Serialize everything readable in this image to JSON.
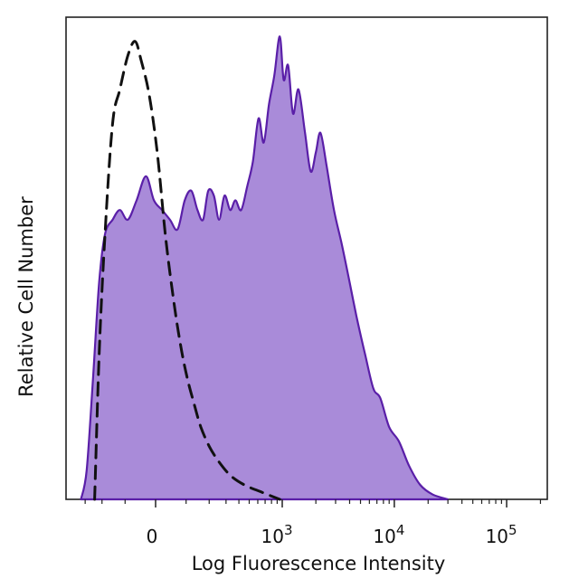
{
  "chart_data": {
    "type": "area",
    "title": "",
    "xlabel": "Log Fluorescence Intensity",
    "ylabel": "Relative Cell Number",
    "x_scale": "biexponential",
    "xlim": [
      -300,
      200000
    ],
    "ylim": [
      0,
      1.0
    ],
    "ticks": [
      {
        "value": 0,
        "base": "0",
        "exp": ""
      },
      {
        "value": 1000,
        "base": "10",
        "exp": "3"
      },
      {
        "value": 10000,
        "base": "10",
        "exp": "4"
      },
      {
        "value": 100000,
        "base": "10",
        "exp": "5"
      }
    ],
    "grid": false,
    "legend": "none",
    "series": [
      {
        "style": "filled",
        "fill": "#a98bd9",
        "stroke": "#5a1fa8",
        "points": [
          [
            -330,
            0.0
          ],
          [
            -290,
            0.06
          ],
          [
            -250,
            0.25
          ],
          [
            -215,
            0.45
          ],
          [
            -185,
            0.55
          ],
          [
            -150,
            0.58
          ],
          [
            -120,
            0.6
          ],
          [
            -90,
            0.58
          ],
          [
            -60,
            0.62
          ],
          [
            -30,
            0.67
          ],
          [
            -5,
            0.62
          ],
          [
            20,
            0.6
          ],
          [
            45,
            0.58
          ],
          [
            70,
            0.56
          ],
          [
            95,
            0.62
          ],
          [
            120,
            0.64
          ],
          [
            145,
            0.6
          ],
          [
            170,
            0.58
          ],
          [
            195,
            0.64
          ],
          [
            225,
            0.63
          ],
          [
            255,
            0.58
          ],
          [
            290,
            0.63
          ],
          [
            330,
            0.6
          ],
          [
            370,
            0.62
          ],
          [
            420,
            0.6
          ],
          [
            480,
            0.65
          ],
          [
            540,
            0.7
          ],
          [
            610,
            0.79
          ],
          [
            680,
            0.74
          ],
          [
            760,
            0.82
          ],
          [
            850,
            0.88
          ],
          [
            950,
            0.96
          ],
          [
            1030,
            0.87
          ],
          [
            1130,
            0.9
          ],
          [
            1250,
            0.8
          ],
          [
            1400,
            0.85
          ],
          [
            1600,
            0.76
          ],
          [
            1800,
            0.68
          ],
          [
            2000,
            0.72
          ],
          [
            2200,
            0.76
          ],
          [
            2500,
            0.69
          ],
          [
            2900,
            0.6
          ],
          [
            3400,
            0.53
          ],
          [
            4000,
            0.45
          ],
          [
            4600,
            0.38
          ],
          [
            5500,
            0.3
          ],
          [
            6500,
            0.23
          ],
          [
            7500,
            0.21
          ],
          [
            9000,
            0.15
          ],
          [
            11000,
            0.12
          ],
          [
            13500,
            0.07
          ],
          [
            17000,
            0.03
          ],
          [
            22000,
            0.01
          ],
          [
            30000,
            0.0
          ]
        ]
      },
      {
        "style": "dashed",
        "stroke": "#111111",
        "points": [
          [
            -240,
            0.0
          ],
          [
            -215,
            0.3
          ],
          [
            -185,
            0.55
          ],
          [
            -150,
            0.78
          ],
          [
            -120,
            0.85
          ],
          [
            -90,
            0.92
          ],
          [
            -65,
            0.95
          ],
          [
            -45,
            0.91
          ],
          [
            -20,
            0.84
          ],
          [
            5,
            0.72
          ],
          [
            30,
            0.55
          ],
          [
            55,
            0.42
          ],
          [
            80,
            0.32
          ],
          [
            105,
            0.25
          ],
          [
            130,
            0.2
          ],
          [
            160,
            0.15
          ],
          [
            200,
            0.11
          ],
          [
            250,
            0.08
          ],
          [
            330,
            0.05
          ],
          [
            450,
            0.03
          ],
          [
            650,
            0.015
          ],
          [
            950,
            0.0
          ]
        ]
      }
    ]
  }
}
